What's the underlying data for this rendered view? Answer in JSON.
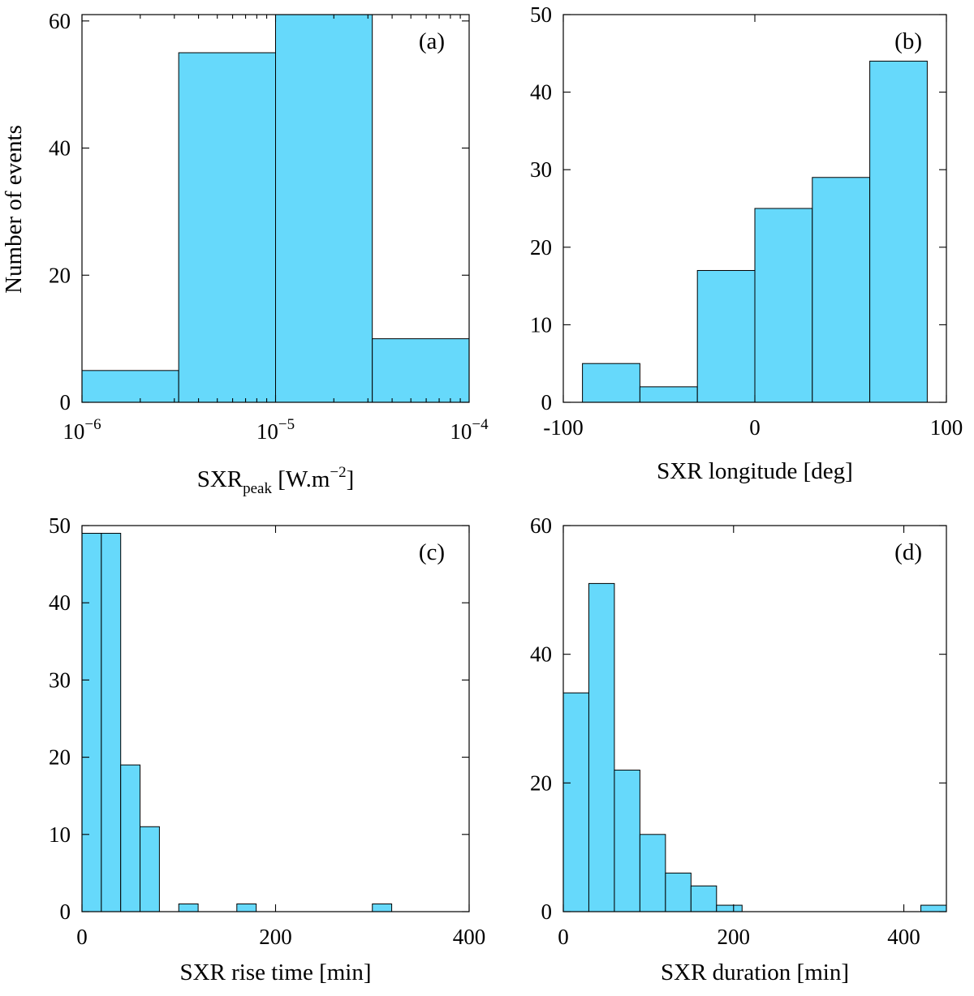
{
  "figure": {
    "ylabel_shared": "Number of events"
  },
  "chart_data": [
    {
      "type": "bar",
      "panel_label": "(a)",
      "xlabel_main": "SXR",
      "xlabel_sub": "peak",
      "xlabel_rest": " [W.m",
      "xlabel_sup": "−2",
      "xlabel_end": "]",
      "xscale": "log",
      "xlim": [
        1e-06,
        0.0001
      ],
      "ylim": [
        0,
        61
      ],
      "xticks": [
        {
          "value": 1e-06,
          "base": "10",
          "exp": "−6"
        },
        {
          "value": 1e-05,
          "base": "10",
          "exp": "−5"
        },
        {
          "value": 0.0001,
          "base": "10",
          "exp": "−4"
        }
      ],
      "yticks": [
        0,
        20,
        40,
        60
      ],
      "bins": [
        {
          "x0": 1e-06,
          "x1": 3.16e-06,
          "value": 5
        },
        {
          "x0": 3.16e-06,
          "x1": 1e-05,
          "value": 55
        },
        {
          "x0": 1e-05,
          "x1": 3.16e-05,
          "value": 61
        },
        {
          "x0": 3.16e-05,
          "x1": 0.0001,
          "value": 10
        }
      ]
    },
    {
      "type": "bar",
      "panel_label": "(b)",
      "xlabel": "SXR longitude [deg]",
      "xscale": "linear",
      "xlim": [
        -100,
        100
      ],
      "ylim": [
        0,
        50
      ],
      "xticks": [
        {
          "value": -100,
          "label": "-100"
        },
        {
          "value": 0,
          "label": "0"
        },
        {
          "value": 100,
          "label": "100"
        }
      ],
      "yticks": [
        0,
        10,
        20,
        30,
        40,
        50
      ],
      "bins": [
        {
          "x0": -90,
          "x1": -60,
          "value": 5
        },
        {
          "x0": -60,
          "x1": -30,
          "value": 2
        },
        {
          "x0": -30,
          "x1": 0,
          "value": 17
        },
        {
          "x0": 0,
          "x1": 30,
          "value": 25
        },
        {
          "x0": 30,
          "x1": 60,
          "value": 29
        },
        {
          "x0": 60,
          "x1": 90,
          "value": 44
        }
      ]
    },
    {
      "type": "bar",
      "panel_label": "(c)",
      "xlabel": "SXR rise time [min]",
      "xscale": "linear",
      "xlim": [
        0,
        400
      ],
      "ylim": [
        0,
        50
      ],
      "xticks": [
        {
          "value": 0,
          "label": "0"
        },
        {
          "value": 200,
          "label": "200"
        },
        {
          "value": 400,
          "label": "400"
        }
      ],
      "yticks": [
        0,
        10,
        20,
        30,
        40,
        50
      ],
      "bins": [
        {
          "x0": 0,
          "x1": 20,
          "value": 49
        },
        {
          "x0": 20,
          "x1": 40,
          "value": 49
        },
        {
          "x0": 40,
          "x1": 60,
          "value": 19
        },
        {
          "x0": 60,
          "x1": 80,
          "value": 11
        },
        {
          "x0": 100,
          "x1": 120,
          "value": 1
        },
        {
          "x0": 160,
          "x1": 180,
          "value": 1
        },
        {
          "x0": 300,
          "x1": 320,
          "value": 1
        }
      ]
    },
    {
      "type": "bar",
      "panel_label": "(d)",
      "xlabel": "SXR duration [min]",
      "xscale": "linear",
      "xlim": [
        0,
        450
      ],
      "ylim": [
        0,
        60
      ],
      "xticks": [
        {
          "value": 0,
          "label": "0"
        },
        {
          "value": 200,
          "label": "200"
        },
        {
          "value": 400,
          "label": "400"
        }
      ],
      "yticks": [
        0,
        20,
        40,
        60
      ],
      "bins": [
        {
          "x0": 0,
          "x1": 30,
          "value": 34
        },
        {
          "x0": 30,
          "x1": 60,
          "value": 51
        },
        {
          "x0": 60,
          "x1": 90,
          "value": 22
        },
        {
          "x0": 90,
          "x1": 120,
          "value": 12
        },
        {
          "x0": 120,
          "x1": 150,
          "value": 6
        },
        {
          "x0": 150,
          "x1": 180,
          "value": 4
        },
        {
          "x0": 180,
          "x1": 210,
          "value": 1
        },
        {
          "x0": 420,
          "x1": 450,
          "value": 1
        }
      ]
    }
  ]
}
